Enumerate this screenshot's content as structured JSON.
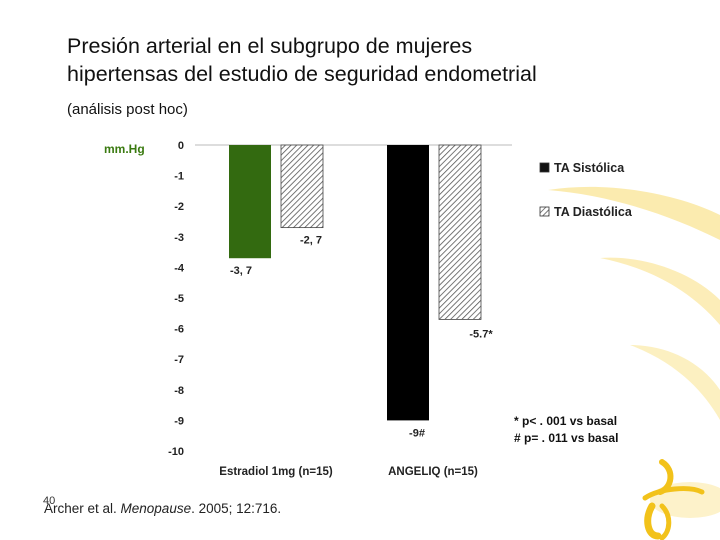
{
  "slide": {
    "title_line1": "Presión arterial en el subgrupo de mujeres",
    "title_line2": "hipertensas del estudio de seguridad endometrial",
    "subtitle": "(análisis post hoc)",
    "footnote_line1": "* p< . 001 vs basal",
    "footnote_line2": "# p= . 011 vs basal",
    "citation_author": "Archer et al. ",
    "citation_journal": "Menopause",
    "citation_rest": ". 2005; 12:716.",
    "page_number": "40"
  },
  "colors": {
    "systolic_estradiol": "#336a10",
    "systolic_angeliq": "#000000",
    "diastolic_hatch": "#555555",
    "ylabel": "#3a7a10",
    "decor_yellow": "#fbe9a6",
    "decor_gold": "#f2c21a"
  },
  "chart_data": {
    "type": "bar",
    "ylabel": "mm.Hg",
    "ylim": [
      -10,
      0
    ],
    "yticks": [
      0,
      -1,
      -2,
      -3,
      -4,
      -5,
      -6,
      -7,
      -8,
      -9,
      -10
    ],
    "categories": [
      "Estradiol 1mg (n=15)",
      "ANGELIQ (n=15)"
    ],
    "series": [
      {
        "name": "TA Sistólica",
        "values": [
          -3.7,
          -9
        ],
        "labels": [
          "-3, 7",
          "-9#"
        ]
      },
      {
        "name": "TA Diastólica",
        "values": [
          -2.7,
          -5.7
        ],
        "labels": [
          "-2, 7",
          "-5.7*"
        ]
      }
    ],
    "legend_position": "top-right",
    "grid": false
  }
}
